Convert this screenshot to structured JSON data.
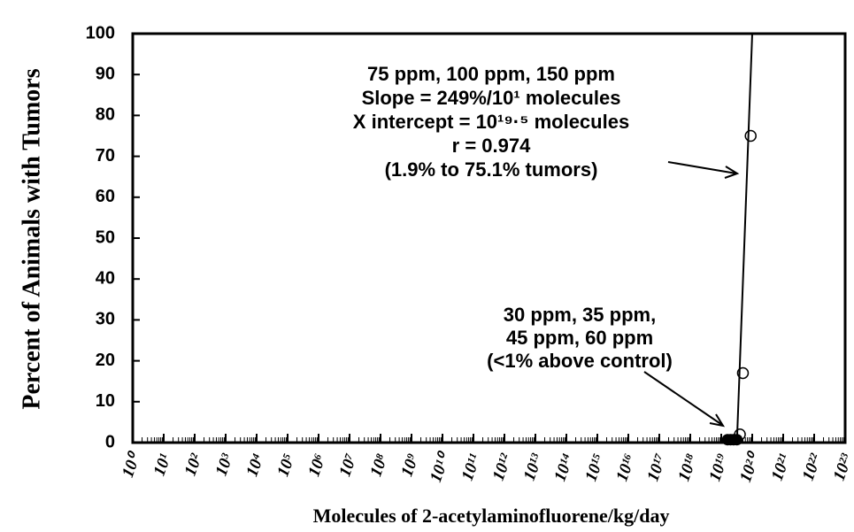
{
  "chart_data": {
    "type": "scatter",
    "xlabel": "Molecules of 2-acetylaminofluorene/kg/day",
    "ylabel": "Percent of Animals with Tumors",
    "xscale": "log",
    "xlim": [
      1,
      1e+23
    ],
    "ylim": [
      0,
      100
    ],
    "xticks": [
      {
        "value": 1,
        "label": "10⁰"
      },
      {
        "value": 10.0,
        "label": "10¹"
      },
      {
        "value": 100.0,
        "label": "10²"
      },
      {
        "value": 1000.0,
        "label": "10³"
      },
      {
        "value": 10000.0,
        "label": "10⁴"
      },
      {
        "value": 100000.0,
        "label": "10⁵"
      },
      {
        "value": 1000000.0,
        "label": "10⁶"
      },
      {
        "value": 10000000.0,
        "label": "10⁷"
      },
      {
        "value": 100000000.0,
        "label": "10⁸"
      },
      {
        "value": 1000000000.0,
        "label": "10⁹"
      },
      {
        "value": 10000000000.0,
        "label": "10¹⁰"
      },
      {
        "value": 100000000000.0,
        "label": "10¹¹"
      },
      {
        "value": 1000000000000.0,
        "label": "10¹²"
      },
      {
        "value": 10000000000000.0,
        "label": "10¹³"
      },
      {
        "value": 100000000000000.0,
        "label": "10¹⁴"
      },
      {
        "value": 1000000000000000.0,
        "label": "10¹⁵"
      },
      {
        "value": 1e+16,
        "label": "10¹⁶"
      },
      {
        "value": 1e+17,
        "label": "10¹⁷"
      },
      {
        "value": 1e+18,
        "label": "10¹⁸"
      },
      {
        "value": 1e+19,
        "label": "10¹⁹"
      },
      {
        "value": 1e+20,
        "label": "10²⁰"
      },
      {
        "value": 1e+21,
        "label": "10²¹"
      },
      {
        "value": 1e+22,
        "label": "10²²"
      },
      {
        "value": 1e+23,
        "label": "10²³"
      }
    ],
    "yticks": [
      0,
      10,
      20,
      30,
      40,
      50,
      60,
      70,
      80,
      90,
      100
    ],
    "series": [
      {
        "marker": "open",
        "color": "#000000",
        "x": [
          8.9e+19,
          5e+19,
          4e+19
        ],
        "values": [
          75,
          17,
          2
        ]
      },
      {
        "marker": "filled",
        "color": "#000000",
        "x": [
          1.6e+19,
          2e+19,
          2.5e+19,
          3.2e+19
        ],
        "values": [
          0.5,
          0.5,
          0.5,
          0.5
        ]
      },
      {
        "marker": "line",
        "color": "#000000",
        "x": [
          3.2e+19,
          1e+20
        ],
        "values": [
          0,
          100
        ]
      }
    ],
    "annotations": [
      {
        "lines": [
          "75 ppm, 100 ppm, 150 ppm",
          "Slope = 249%/10¹ molecules",
          "X intercept = 10¹⁹·⁵ molecules",
          "r = 0.974",
          "(1.9% to 75.1% tumors)"
        ]
      },
      {
        "lines": [
          "30 ppm, 35 ppm,",
          "45 ppm, 60 ppm",
          "(<1% above control)"
        ]
      }
    ]
  }
}
